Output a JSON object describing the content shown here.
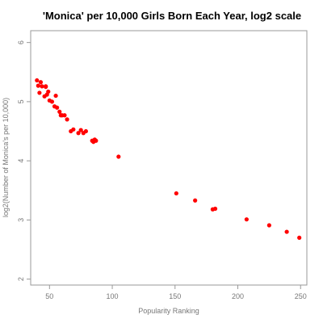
{
  "chart_data": {
    "type": "scatter",
    "title": "'Monica' per 10,000 Girls Born Each Year, log2 scale",
    "xlabel": "Popularity Ranking",
    "ylabel": "log2(Number of Monica's per 10,000)",
    "xlim": [
      35,
      255
    ],
    "ylim": [
      1.9,
      6.2
    ],
    "xticks": [
      50,
      100,
      150,
      200,
      250
    ],
    "yticks": [
      2,
      3,
      4,
      5,
      6
    ],
    "xtick_labels": [
      "50",
      "100",
      "150",
      "200",
      "250"
    ],
    "ytick_labels": [
      "2",
      "3",
      "4",
      "5",
      "6"
    ],
    "marker_color": "#ff0000",
    "grid": false,
    "series": [
      {
        "x": [
          40,
          41,
          42,
          43,
          44,
          46,
          47,
          47,
          48,
          49,
          50,
          52,
          54,
          55,
          56,
          58,
          59,
          60,
          62,
          64,
          67,
          69,
          73,
          75,
          77,
          79,
          84,
          85,
          86,
          87,
          105,
          151,
          166,
          180,
          182,
          207,
          225,
          239,
          249
        ],
        "y": [
          5.36,
          5.27,
          5.15,
          5.33,
          5.26,
          5.09,
          5.26,
          5.25,
          5.12,
          5.17,
          5.02,
          5.0,
          4.92,
          5.1,
          4.9,
          4.83,
          4.77,
          4.77,
          4.77,
          4.7,
          4.5,
          4.53,
          4.47,
          4.52,
          4.47,
          4.5,
          4.34,
          4.32,
          4.36,
          4.34,
          4.07,
          3.45,
          3.33,
          3.18,
          3.19,
          3.01,
          2.91,
          2.8,
          2.7
        ]
      }
    ]
  }
}
